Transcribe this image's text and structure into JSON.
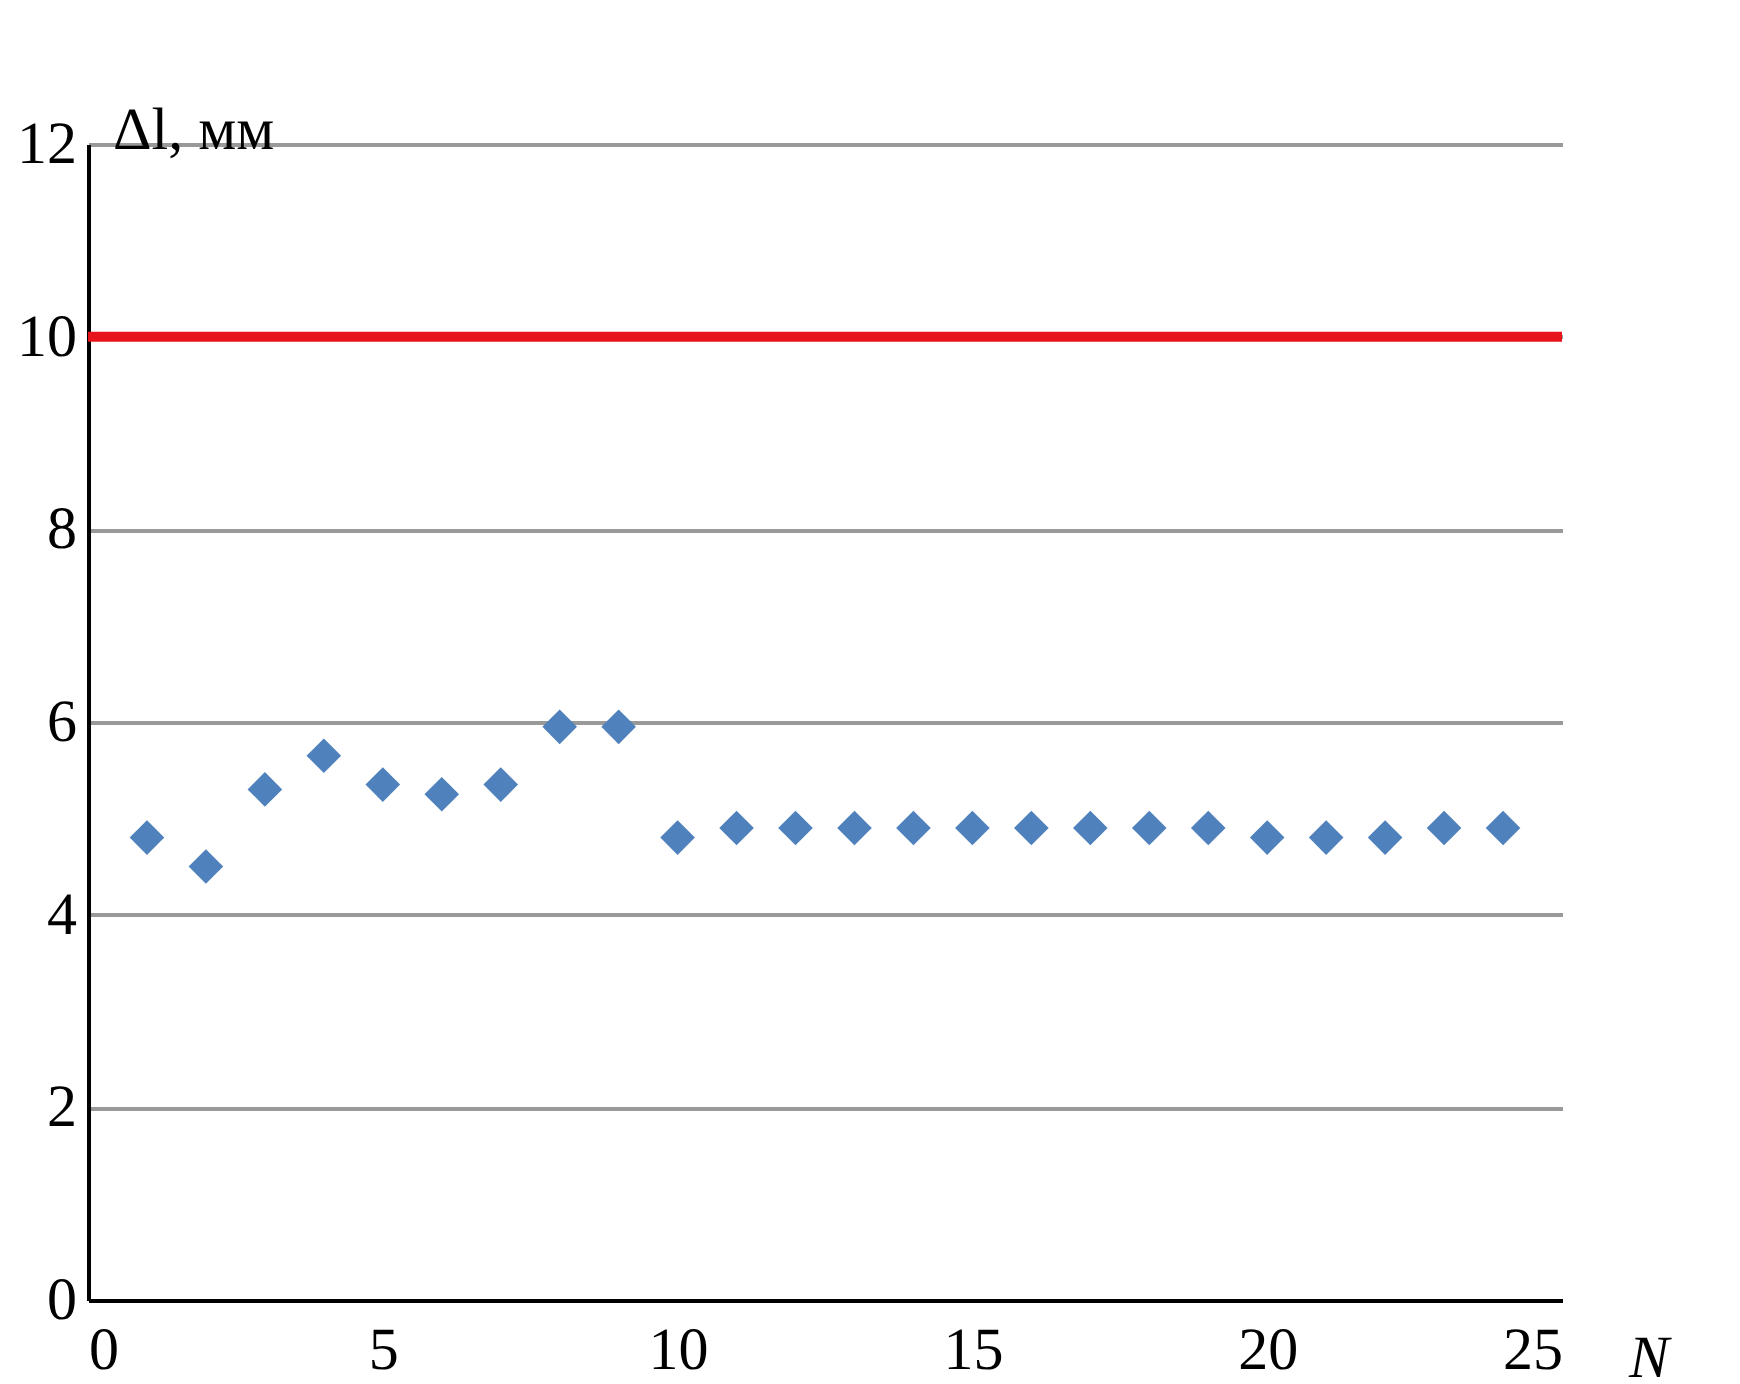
{
  "chart_data": {
    "type": "scatter",
    "xlabel": "N",
    "ylabel": "Δl, мм",
    "x": [
      1,
      2,
      3,
      4,
      5,
      6,
      7,
      8,
      9,
      10,
      11,
      12,
      13,
      14,
      15,
      16,
      17,
      18,
      19,
      20,
      21,
      22,
      23,
      24
    ],
    "series": [
      {
        "color": "#4f81bd",
        "values": [
          4.8,
          4.5,
          5.3,
          5.65,
          5.35,
          5.25,
          5.35,
          5.95,
          5.95,
          4.8,
          4.9,
          4.9,
          4.9,
          4.9,
          4.9,
          4.9,
          4.9,
          4.9,
          4.9,
          4.8,
          4.8,
          4.8,
          4.9,
          4.9
        ]
      }
    ],
    "xlim": [
      0,
      25
    ],
    "xticks": [
      0,
      5,
      10,
      15,
      20,
      25
    ],
    "ylim": [
      0,
      12
    ],
    "yticks": [
      0,
      2,
      4,
      6,
      8,
      10,
      12
    ],
    "ref_lines": [
      {
        "axis": "y",
        "value": 10,
        "color": "#e8141c"
      }
    ],
    "grid": "y",
    "marker": "diamond"
  }
}
